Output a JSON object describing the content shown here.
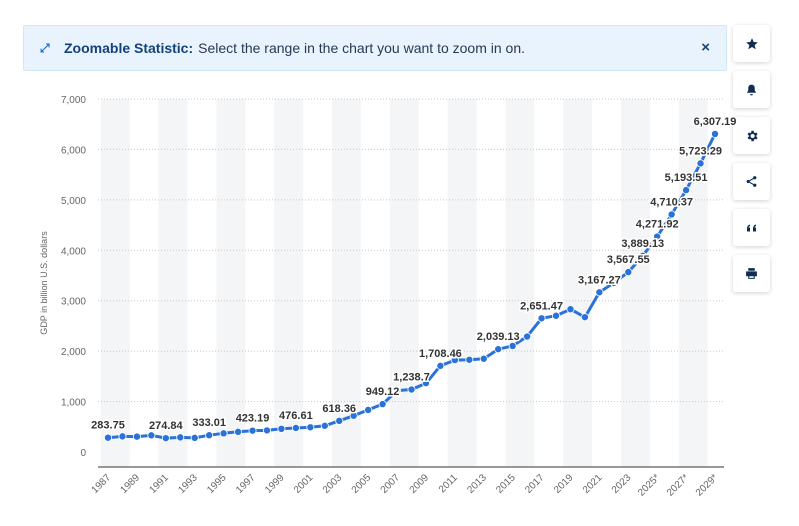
{
  "banner": {
    "title": "Zoomable Statistic:",
    "description": "Select the range in the chart you want to zoom in on.",
    "close_label": "×"
  },
  "sidebar": {
    "icons": [
      "star-icon",
      "bell-icon",
      "gear-icon",
      "share-icon",
      "quote-icon",
      "print-icon"
    ]
  },
  "colors": {
    "line": "#2a72d8",
    "text": "#333333",
    "axis": "#666666"
  },
  "chart_data": {
    "type": "line",
    "title": "",
    "xlabel": "",
    "ylabel": "GDP in billion U.S. dollars",
    "ylim": [
      0,
      7000
    ],
    "yticks": [
      0,
      1000,
      2000,
      3000,
      4000,
      5000,
      6000,
      7000
    ],
    "ytick_labels": [
      "0",
      "1,000",
      "2,000",
      "3,000",
      "4,000",
      "5,000",
      "6,000",
      "7,000"
    ],
    "x": [
      1987,
      1988,
      1989,
      1990,
      1991,
      1992,
      1993,
      1994,
      1995,
      1996,
      1997,
      1998,
      1999,
      2000,
      2001,
      2002,
      2003,
      2004,
      2005,
      2006,
      2007,
      2008,
      2009,
      2010,
      2011,
      2012,
      2013,
      2014,
      2015,
      2016,
      2017,
      2018,
      2019,
      2020,
      2021,
      2022,
      2023,
      2024,
      2025,
      2026,
      2027,
      2028,
      2029
    ],
    "xtick_labels": [
      "1987",
      "1989",
      "1991",
      "1993",
      "1995",
      "1997",
      "1999",
      "2001",
      "2003",
      "2005",
      "2007",
      "2009",
      "2011",
      "2013",
      "2015",
      "2017",
      "2019",
      "2021",
      "2023",
      "2025*",
      "2027*",
      "2029*"
    ],
    "series": [
      {
        "name": "GDP",
        "values": [
          283.75,
          310,
          305,
          330,
          274.84,
          290,
          280,
          333.01,
          370,
          400,
          423.19,
          428,
          460,
          476.61,
          490,
          520,
          618.36,
          720,
          834,
          949.12,
          1217,
          1238.7,
          1365,
          1708.46,
          1823,
          1829,
          1850,
          2039.13,
          2103,
          2290,
          2651.47,
          2702,
          2832,
          2674,
          3167.27,
          3353,
          3567.55,
          3889.13,
          4271.92,
          4710.37,
          5193.51,
          5723.29,
          6307.19
        ]
      }
    ],
    "data_labels": [
      {
        "index": 0,
        "text": "283.75"
      },
      {
        "index": 4,
        "text": "274.84"
      },
      {
        "index": 7,
        "text": "333.01"
      },
      {
        "index": 10,
        "text": "423.19"
      },
      {
        "index": 13,
        "text": "476.61"
      },
      {
        "index": 16,
        "text": "618.36"
      },
      {
        "index": 19,
        "text": "949.12"
      },
      {
        "index": 21,
        "text": "1,238.7"
      },
      {
        "index": 23,
        "text": "1,708.46"
      },
      {
        "index": 27,
        "text": "2,039.13"
      },
      {
        "index": 30,
        "text": "2,651.47"
      },
      {
        "index": 34,
        "text": "3,167.27"
      },
      {
        "index": 36,
        "text": "3,567.55"
      },
      {
        "index": 37,
        "text": "3,889.13"
      },
      {
        "index": 38,
        "text": "4,271.92"
      },
      {
        "index": 39,
        "text": "4,710.37"
      },
      {
        "index": 40,
        "text": "5,193.51"
      },
      {
        "index": 41,
        "text": "5,723.29"
      },
      {
        "index": 42,
        "text": "6,307.19"
      }
    ]
  }
}
